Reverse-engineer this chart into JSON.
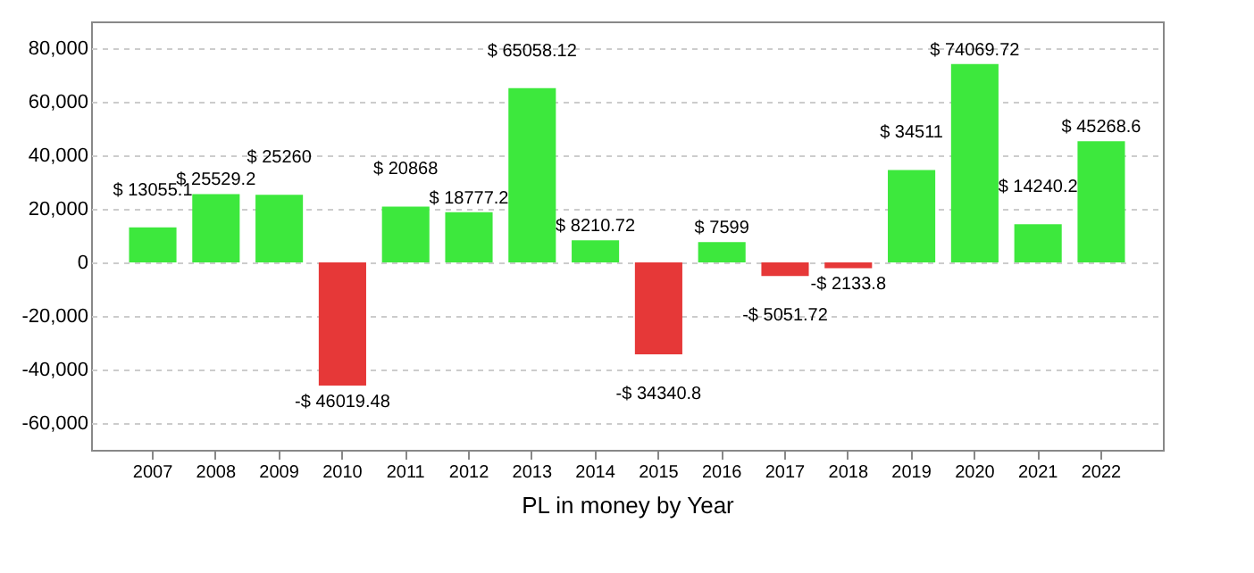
{
  "chart_data": {
    "type": "bar",
    "xlabel": "PL in money by Year",
    "categories": [
      "2007",
      "2008",
      "2009",
      "2010",
      "2011",
      "2012",
      "2013",
      "2014",
      "2015",
      "2016",
      "2017",
      "2018",
      "2019",
      "2020",
      "2021",
      "2022"
    ],
    "values": [
      13055.1,
      25529.2,
      25260,
      -46019.48,
      20868,
      18777.2,
      65058.12,
      8210.72,
      -34340.8,
      7599,
      -5051.72,
      -2133.8,
      34511,
      74069.72,
      14240.2,
      45268.6
    ],
    "value_labels": [
      "$ 13055.1",
      "$ 25529.2",
      "$ 25260",
      "-$ 46019.48",
      "$ 20868",
      "$ 18777.2",
      "$ 65058.12",
      "$ 8210.72",
      "-$ 34340.8",
      "$ 7599",
      "-$ 5051.72",
      "-$ 2133.8",
      "$ 34511",
      "$ 74069.72",
      "$ 14240.2",
      "$ 45268.6"
    ],
    "colors": [
      "#3de83d",
      "#3de83d",
      "#3de83d",
      "#e63838",
      "#3de83d",
      "#3de83d",
      "#3de83d",
      "#3de83d",
      "#e63838",
      "#3de83d",
      "#e63838",
      "#e63838",
      "#3de83d",
      "#3de83d",
      "#3de83d",
      "#3de83d"
    ],
    "ylim": [
      -70000,
      90000
    ],
    "yticks": [
      {
        "value": -60000,
        "label": "-60,000"
      },
      {
        "value": -40000,
        "label": "-40,000"
      },
      {
        "value": -20000,
        "label": "-20,000"
      },
      0,
      {
        "value": 20000,
        "label": "20,000"
      },
      {
        "value": 40000,
        "label": "40,000"
      },
      {
        "value": 60000,
        "label": "60,000"
      },
      {
        "value": 80000,
        "label": "80,000"
      }
    ],
    "grid": "y"
  }
}
